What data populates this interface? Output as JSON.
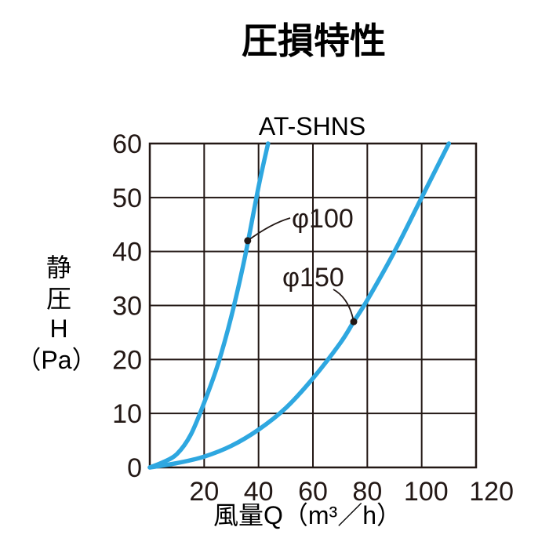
{
  "chart_data": {
    "type": "line",
    "title": "圧損特性",
    "model": "AT-SHNS",
    "xlabel": "風量Q（m³／h）",
    "ylabel_lines": [
      "静",
      "圧",
      "H",
      "（Pa）"
    ],
    "xlim": [
      0,
      120
    ],
    "ylim": [
      0,
      60
    ],
    "x_ticks": [
      "20",
      "40",
      "60",
      "80",
      "100",
      "120"
    ],
    "y_ticks": [
      "0",
      "10",
      "20",
      "30",
      "40",
      "50",
      "60"
    ],
    "grid": true,
    "colors": {
      "line": "#2ea7e0",
      "grid": "#231815"
    },
    "series": [
      {
        "label": "φ100",
        "x": [
          0,
          5,
          10,
          15,
          20,
          25,
          30,
          35,
          40,
          43.5
        ],
        "y": [
          0,
          1,
          2.5,
          6,
          12,
          19,
          28,
          39,
          52,
          60
        ]
      },
      {
        "label": "φ150",
        "x": [
          0,
          10,
          20,
          30,
          40,
          50,
          60,
          70,
          75,
          80,
          90,
          100,
          110
        ],
        "y": [
          0,
          0.8,
          2,
          4,
          7,
          11,
          16.5,
          23,
          27,
          31,
          40,
          50,
          60
        ]
      }
    ],
    "annotations": [
      {
        "series": 0,
        "marker": [
          36,
          42
        ]
      },
      {
        "series": 1,
        "marker": [
          75,
          27
        ]
      }
    ]
  }
}
